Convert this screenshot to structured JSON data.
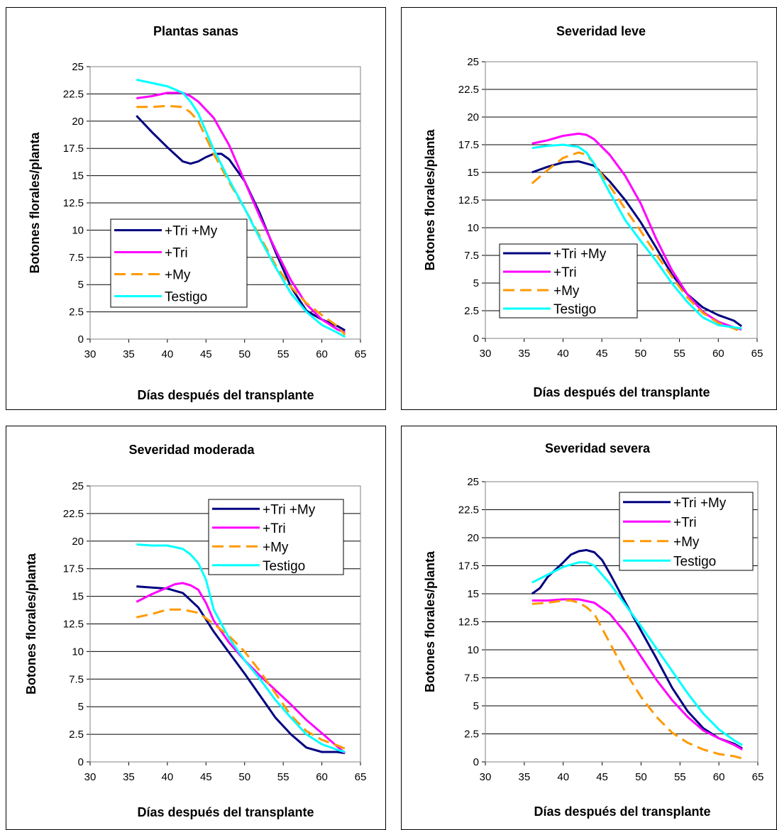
{
  "colors": {
    "series_tri_my": "#000080",
    "series_tri": "#ff00ff",
    "series_my": "#ff9900",
    "series_testigo": "#00ffff",
    "grid": "#000000",
    "frame": "#000000"
  },
  "chart_data": [
    {
      "type": "line",
      "title": "Plantas sanas",
      "xlabel": "Días después del transplante",
      "ylabel": "Botones florales/planta",
      "xlim": [
        30,
        65
      ],
      "ylim": [
        0,
        25
      ],
      "xticks": [
        "30",
        "35",
        "40",
        "45",
        "50",
        "55",
        "60",
        "65"
      ],
      "yticks": [
        "0",
        "2.5",
        "5",
        "7.5",
        "10",
        "12.5",
        "15",
        "17.5",
        "20",
        "22.5",
        "25"
      ],
      "grid": "horizontal",
      "legend": "middle-left",
      "series": [
        {
          "name": "+Tri +My",
          "x": [
            36,
            38,
            40,
            42,
            43,
            44,
            45,
            46,
            47,
            48,
            50,
            52,
            54,
            56,
            58,
            60,
            62,
            63
          ],
          "y": [
            20.5,
            19,
            17.6,
            16.3,
            16.1,
            16.3,
            16.7,
            17,
            17,
            16.5,
            14.5,
            11.5,
            8,
            4.8,
            2.6,
            1.8,
            1.2,
            0.8
          ]
        },
        {
          "name": "+Tri",
          "x": [
            36,
            38,
            40,
            42,
            43,
            44,
            46,
            48,
            50,
            52,
            54,
            56,
            58,
            60,
            62,
            63
          ],
          "y": [
            22.1,
            22.3,
            22.6,
            22.6,
            22.3,
            21.8,
            20.3,
            17.8,
            14.5,
            11.2,
            8.2,
            5.4,
            3.2,
            1.8,
            0.9,
            0.6
          ]
        },
        {
          "name": "+My",
          "x": [
            36,
            38,
            40,
            42,
            43,
            44,
            46,
            48,
            50,
            52,
            54,
            56,
            58,
            60,
            62,
            63
          ],
          "y": [
            21.3,
            21.3,
            21.4,
            21.3,
            20.8,
            20,
            17,
            14.4,
            12,
            9.4,
            6.8,
            4.8,
            3.3,
            2.2,
            1.2,
            0.4
          ]
        },
        {
          "name": "Testigo",
          "x": [
            36,
            38,
            40,
            42,
            43,
            44,
            46,
            48,
            50,
            52,
            54,
            56,
            58,
            60,
            62,
            63
          ],
          "y": [
            23.8,
            23.5,
            23.2,
            22.6,
            21.8,
            20.7,
            17.4,
            14.6,
            12,
            9.2,
            6.6,
            4.2,
            2.5,
            1.3,
            0.6,
            0.2
          ]
        }
      ]
    },
    {
      "type": "line",
      "title": "Severidad leve",
      "xlabel": "Días después del transplante",
      "ylabel": "Botones florales/planta",
      "xlim": [
        30,
        65
      ],
      "ylim": [
        0,
        25
      ],
      "xticks": [
        "30",
        "35",
        "40",
        "45",
        "50",
        "55",
        "60",
        "65"
      ],
      "yticks": [
        "0",
        "2.5",
        "5",
        "7.5",
        "10",
        "12.5",
        "15",
        "17.5",
        "20",
        "22.5",
        "25"
      ],
      "grid": "horizontal",
      "legend": "bottom-left",
      "series": [
        {
          "name": "+Tri +My",
          "x": [
            36,
            38,
            40,
            42,
            44,
            46,
            48,
            50,
            52,
            54,
            56,
            58,
            60,
            62,
            63
          ],
          "y": [
            15,
            15.5,
            15.9,
            16,
            15.6,
            14.2,
            12.5,
            10.5,
            8.2,
            5.8,
            4,
            2.8,
            2.1,
            1.6,
            1.1
          ]
        },
        {
          "name": "+Tri",
          "x": [
            36,
            38,
            40,
            42,
            43,
            44,
            46,
            48,
            50,
            52,
            54,
            56,
            58,
            60,
            62,
            63
          ],
          "y": [
            17.6,
            17.9,
            18.3,
            18.5,
            18.4,
            18,
            16.6,
            14.7,
            12.2,
            9,
            6.2,
            4,
            2.4,
            1.5,
            1,
            0.8
          ]
        },
        {
          "name": "+My",
          "x": [
            36,
            38,
            40,
            42,
            43,
            44,
            46,
            48,
            50,
            52,
            54,
            56,
            58,
            60,
            62,
            63
          ],
          "y": [
            14,
            15.2,
            16.3,
            16.8,
            16.6,
            15.8,
            13.8,
            11.7,
            9.7,
            7.6,
            5.6,
            3.7,
            2.3,
            1.4,
            0.9,
            0.6
          ]
        },
        {
          "name": "Testigo",
          "x": [
            36,
            38,
            40,
            42,
            43,
            44,
            46,
            48,
            50,
            52,
            54,
            56,
            58,
            60,
            62,
            63
          ],
          "y": [
            17.2,
            17.4,
            17.5,
            17.3,
            16.8,
            15.8,
            13.2,
            10.7,
            8.8,
            7,
            5,
            3.3,
            1.9,
            1.2,
            1,
            0.9
          ]
        }
      ]
    },
    {
      "type": "line",
      "title": "Severidad moderada",
      "xlabel": "Días después del transplante",
      "ylabel": "Botones florales/planta",
      "xlim": [
        30,
        65
      ],
      "ylim": [
        0,
        25
      ],
      "xticks": [
        "30",
        "35",
        "40",
        "45",
        "50",
        "55",
        "60",
        "65"
      ],
      "yticks": [
        "0",
        "2.5",
        "5",
        "7.5",
        "10",
        "12.5",
        "15",
        "17.5",
        "20",
        "22.5",
        "25"
      ],
      "grid": "horizontal",
      "legend": "top-right",
      "series": [
        {
          "name": "+Tri +My",
          "x": [
            36,
            38,
            40,
            42,
            44,
            46,
            48,
            50,
            52,
            54,
            56,
            58,
            60,
            62,
            63
          ],
          "y": [
            15.9,
            15.8,
            15.7,
            15.3,
            14,
            11.8,
            9.9,
            8,
            6,
            4,
            2.5,
            1.3,
            0.9,
            0.9,
            0.8
          ]
        },
        {
          "name": "+Tri",
          "x": [
            36,
            38,
            40,
            41,
            42,
            43,
            44,
            45,
            46,
            48,
            50,
            52,
            54,
            56,
            58,
            60,
            62,
            63
          ],
          "y": [
            14.5,
            15.2,
            15.8,
            16.1,
            16.2,
            16,
            15.6,
            14.4,
            12.8,
            10.8,
            9.2,
            7.8,
            6.5,
            5.2,
            3.8,
            2.6,
            1.4,
            0.8
          ]
        },
        {
          "name": "+My",
          "x": [
            36,
            38,
            40,
            42,
            44,
            46,
            48,
            50,
            52,
            54,
            56,
            58,
            60,
            62,
            63
          ],
          "y": [
            13.1,
            13.4,
            13.8,
            13.8,
            13.5,
            12.5,
            11.4,
            10,
            8.2,
            6.2,
            4.2,
            2.8,
            2,
            1.5,
            1.2
          ]
        },
        {
          "name": "Testigo",
          "x": [
            36,
            38,
            40,
            42,
            43,
            44,
            45,
            46,
            48,
            50,
            52,
            54,
            56,
            58,
            60,
            62,
            63
          ],
          "y": [
            19.7,
            19.6,
            19.6,
            19.3,
            18.8,
            18,
            16.5,
            13.8,
            11.2,
            9.2,
            7.5,
            5.6,
            4,
            2.5,
            1.6,
            1.1,
            0.9
          ]
        }
      ]
    },
    {
      "type": "line",
      "title": "Severidad severa",
      "xlabel": "Días después del transplante",
      "ylabel": "Botones florales/planta",
      "xlim": [
        30,
        65
      ],
      "ylim": [
        0,
        25
      ],
      "xticks": [
        "30",
        "35",
        "40",
        "45",
        "50",
        "55",
        "60",
        "65"
      ],
      "yticks": [
        "0",
        "2.5",
        "5",
        "7.5",
        "10",
        "12.5",
        "15",
        "17.5",
        "20",
        "22.5",
        "25"
      ],
      "grid": "horizontal",
      "legend": "top-right",
      "series": [
        {
          "name": "+Tri +My",
          "x": [
            36,
            37,
            38,
            40,
            41,
            42,
            43,
            44,
            45,
            46,
            48,
            50,
            52,
            54,
            56,
            58,
            60,
            62,
            63
          ],
          "y": [
            15,
            15.5,
            16.5,
            17.8,
            18.5,
            18.8,
            18.9,
            18.7,
            18,
            16.8,
            14.2,
            11.7,
            9.2,
            6.6,
            4.5,
            3,
            2.1,
            1.6,
            1.2
          ]
        },
        {
          "name": "+Tri",
          "x": [
            36,
            38,
            40,
            42,
            44,
            46,
            48,
            50,
            52,
            54,
            56,
            58,
            60,
            62,
            63
          ],
          "y": [
            14.4,
            14.4,
            14.5,
            14.5,
            14.2,
            13.2,
            11.5,
            9.4,
            7.3,
            5.5,
            4,
            2.8,
            2.1,
            1.5,
            1.1
          ]
        },
        {
          "name": "+My",
          "x": [
            36,
            38,
            40,
            41,
            42,
            43,
            44,
            46,
            48,
            50,
            52,
            54,
            56,
            58,
            60,
            62,
            63
          ],
          "y": [
            14.1,
            14.2,
            14.4,
            14.4,
            14.2,
            13.8,
            13.2,
            10.6,
            8,
            5.8,
            4,
            2.6,
            1.7,
            1.1,
            0.7,
            0.5,
            0.3
          ]
        },
        {
          "name": "Testigo",
          "x": [
            36,
            38,
            40,
            42,
            43,
            44,
            46,
            48,
            50,
            52,
            54,
            56,
            58,
            60,
            62,
            63
          ],
          "y": [
            16,
            16.7,
            17.4,
            17.8,
            17.8,
            17.5,
            15.9,
            14,
            12.1,
            10.1,
            8.1,
            6.1,
            4.3,
            2.9,
            1.9,
            1.5
          ]
        }
      ]
    }
  ]
}
